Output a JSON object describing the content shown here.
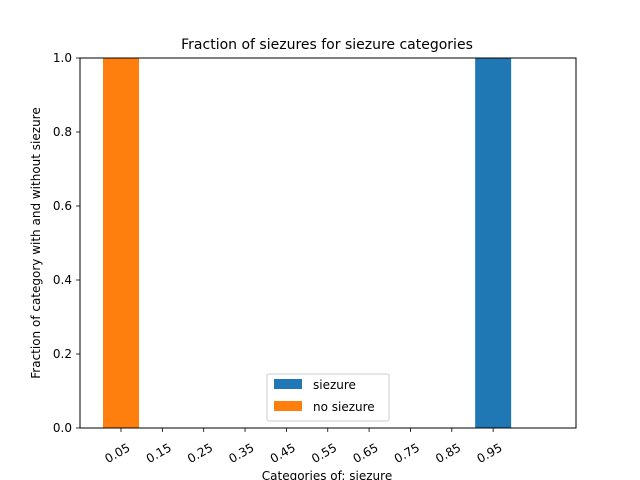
{
  "chart_data": {
    "type": "bar",
    "stacked": true,
    "title": "Fraction of siezures for siezure categories",
    "xlabel": "Categories of: siezure",
    "ylabel": "Fraction of category with and without siezure",
    "categories": [
      "0.05",
      "0.15",
      "0.25",
      "0.35",
      "0.45",
      "0.55",
      "0.65",
      "0.75",
      "0.85",
      "0.95"
    ],
    "series": [
      {
        "name": "siezure",
        "color": "#1f77b4",
        "values": [
          0,
          0,
          0,
          0,
          0,
          0,
          0,
          0,
          0,
          1.0
        ]
      },
      {
        "name": "no siezure",
        "color": "#ff7f0e",
        "values": [
          1.0,
          0,
          0,
          0,
          0,
          0,
          0,
          0,
          0,
          0
        ]
      }
    ],
    "ylim": [
      0,
      1.0
    ],
    "yticks": [
      "0.0",
      "0.2",
      "0.4",
      "0.6",
      "0.8",
      "1.0"
    ],
    "xtick_rotation_deg": 30,
    "grid": false,
    "legend_position": "lower center"
  }
}
